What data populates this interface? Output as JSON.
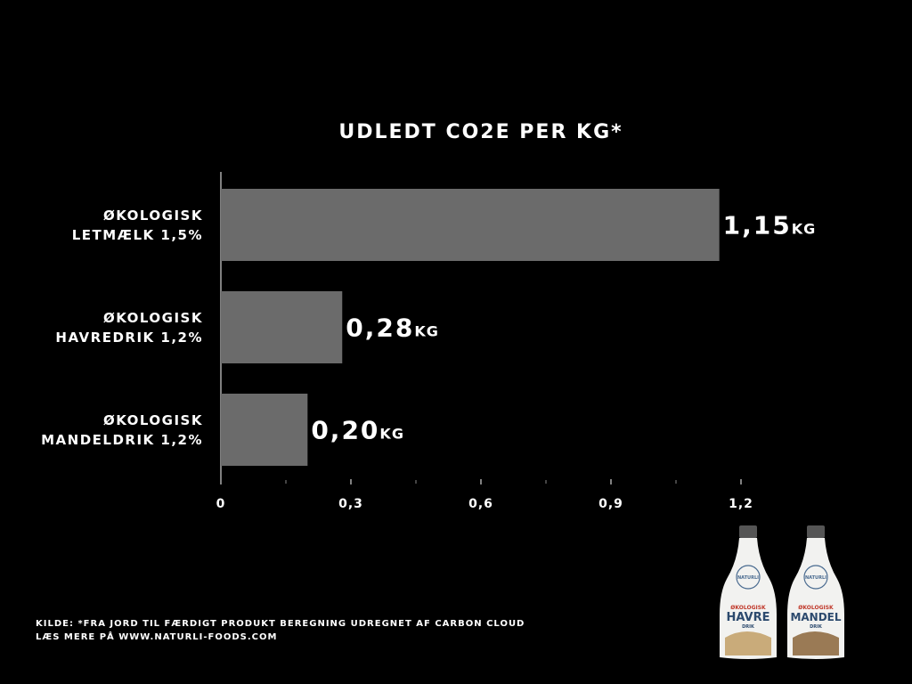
{
  "chart_data": {
    "type": "barh",
    "title": "UDLEDT CO2E PER KG*",
    "categories": [
      "ØKOLOGISK\nLETMÆLK 1,5%",
      "ØKOLOGISK\nHAVREDRIK 1,2%",
      "ØKOLOGISK\nMANDELDRIK 1,2%"
    ],
    "values": [
      1.15,
      0.28,
      0.2
    ],
    "value_labels": [
      "1,15",
      "0,28",
      "0,20"
    ],
    "value_unit": "KG",
    "color": "#6b6b6b",
    "xlim": [
      0,
      1.2
    ],
    "xticks": [
      0,
      {
        "value": 0.3,
        "label": "0,3"
      },
      {
        "value": 0.6,
        "label": "0,6"
      },
      {
        "value": 0.9,
        "label": "0,9"
      },
      {
        "value": 1.2,
        "label": "1,2"
      }
    ],
    "minor_xticks": [
      0.15,
      0.45,
      0.75,
      1.05
    ],
    "grid": false
  },
  "footer": [
    "KILDE: *FRA JORD TIL FÆRDIGT PRODUKT BEREGNING UDREGNET AF CARBON CLOUD",
    "LÆS MERE PÅ WWW.NATURLI-FOODS.COM"
  ],
  "products": [
    {
      "brand": "NATURLI",
      "line": "ØKOLOGISK",
      "name": "HAVRE",
      "sub": "DRIK"
    },
    {
      "brand": "NATURLI",
      "line": "ØKOLOGISK",
      "name": "MANDEL",
      "sub": "DRIK"
    }
  ]
}
